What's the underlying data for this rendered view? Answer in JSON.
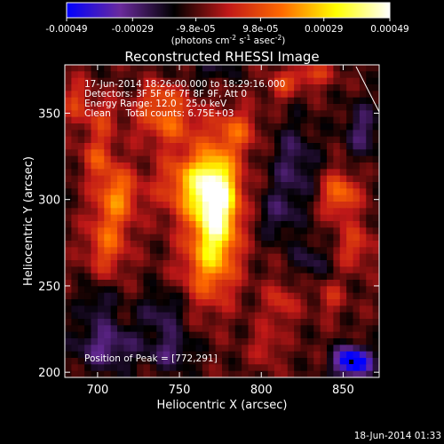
{
  "chart_data": {
    "type": "heatmap",
    "title": "Reconstructed RHESSI Image",
    "xlabel": "Heliocentric X (arcsec)",
    "ylabel": "Heliocentric Y (arcsec)",
    "xlim": [
      680,
      872
    ],
    "ylim": [
      197,
      378
    ],
    "x_ticks": [
      700,
      750,
      800,
      850
    ],
    "y_ticks": [
      200,
      250,
      300,
      350
    ],
    "colorbar": {
      "ticks": [
        "-0.00049",
        "-0.00029",
        "-9.8e-05",
        "9.8e-05",
        "0.00029",
        "0.00049"
      ],
      "values": [
        -0.00049,
        -0.00029,
        -9.8e-05,
        9.8e-05,
        0.00029,
        0.00049
      ],
      "range": [
        -0.00049,
        0.00049
      ],
      "unit_parts": [
        "(photons cm",
        "-2",
        " s",
        "-1",
        " asec",
        "-2",
        ")"
      ],
      "colors": [
        "#0000ff",
        "#6a2a9c",
        "#000000",
        "#c01818",
        "#ff6a00",
        "#ffff00",
        "#ffffff"
      ]
    },
    "info_lines": [
      "17-Jun-2014 18:26:00.000 to 18:29:16.000",
      "Detectors: 3F 5F 6F 7F 8F 9F, Att 0",
      "Energy Range: 12.0 - 25.0 keV",
      "Clean     Total counts: 6.75E+03"
    ],
    "peak_label": "Position of Peak = [772,291]",
    "peak_position": [
      772,
      291
    ],
    "sources": [
      {
        "x": 773,
        "y": 297,
        "sx": 9,
        "sy": 20,
        "amp": 0.00049
      },
      {
        "x": 760,
        "y": 309,
        "sx": 15,
        "sy": 14,
        "amp": 0.00033
      },
      {
        "x": 768,
        "y": 263,
        "sx": 12,
        "sy": 18,
        "amp": 0.00026
      },
      {
        "x": 712,
        "y": 303,
        "sx": 9,
        "sy": 11,
        "amp": 0.00027
      },
      {
        "x": 706,
        "y": 275,
        "sx": 9,
        "sy": 13,
        "amp": 0.00022
      },
      {
        "x": 700,
        "y": 325,
        "sx": 7,
        "sy": 9,
        "amp": 0.00018
      },
      {
        "x": 702,
        "y": 348,
        "sx": 7,
        "sy": 8,
        "amp": 0.00014
      },
      {
        "x": 743,
        "y": 345,
        "sx": 14,
        "sy": 9,
        "amp": 0.00022
      },
      {
        "x": 785,
        "y": 340,
        "sx": 9,
        "sy": 9,
        "amp": 0.0002
      },
      {
        "x": 812,
        "y": 365,
        "sx": 6,
        "sy": 6,
        "amp": 0.00015
      },
      {
        "x": 830,
        "y": 372,
        "sx": 9,
        "sy": 5,
        "amp": 0.00018
      },
      {
        "x": 848,
        "y": 303,
        "sx": 8,
        "sy": 9,
        "amp": 0.00026
      },
      {
        "x": 857,
        "y": 273,
        "sx": 8,
        "sy": 9,
        "amp": 0.00016
      },
      {
        "x": 842,
        "y": 243,
        "sx": 6,
        "sy": 7,
        "amp": 0.00012
      },
      {
        "x": 812,
        "y": 240,
        "sx": 7,
        "sy": 9,
        "amp": 0.00014
      },
      {
        "x": 738,
        "y": 360,
        "sx": 9,
        "sy": 6,
        "amp": 0.00016
      },
      {
        "x": 803,
        "y": 215,
        "sx": 6,
        "sy": 8,
        "amp": 0.00012
      },
      {
        "x": 686,
        "y": 358,
        "sx": 6,
        "sy": 9,
        "amp": 0.00015
      },
      {
        "x": 856,
        "y": 206,
        "sx": 8,
        "sy": 6,
        "amp": -0.00049
      },
      {
        "x": 705,
        "y": 215,
        "sx": 14,
        "sy": 10,
        "amp": -0.0002
      },
      {
        "x": 745,
        "y": 212,
        "sx": 10,
        "sy": 8,
        "amp": -0.00016
      },
      {
        "x": 820,
        "y": 320,
        "sx": 10,
        "sy": 18,
        "amp": -0.00015
      },
      {
        "x": 740,
        "y": 235,
        "sx": 10,
        "sy": 9,
        "amp": -0.00014
      },
      {
        "x": 810,
        "y": 290,
        "sx": 8,
        "sy": 10,
        "amp": -0.00012
      },
      {
        "x": 700,
        "y": 240,
        "sx": 8,
        "sy": 8,
        "amp": -0.00012
      },
      {
        "x": 862,
        "y": 340,
        "sx": 8,
        "sy": 12,
        "amp": -0.00016
      },
      {
        "x": 830,
        "y": 265,
        "sx": 8,
        "sy": 8,
        "amp": -0.00012
      },
      {
        "x": 770,
        "y": 375,
        "sx": 10,
        "sy": 5,
        "amp": -0.0001
      }
    ],
    "background_level": -0.0001,
    "noise_amplitude": 6e-05
  },
  "footer_timestamp": "18-Jun-2014 01:33"
}
